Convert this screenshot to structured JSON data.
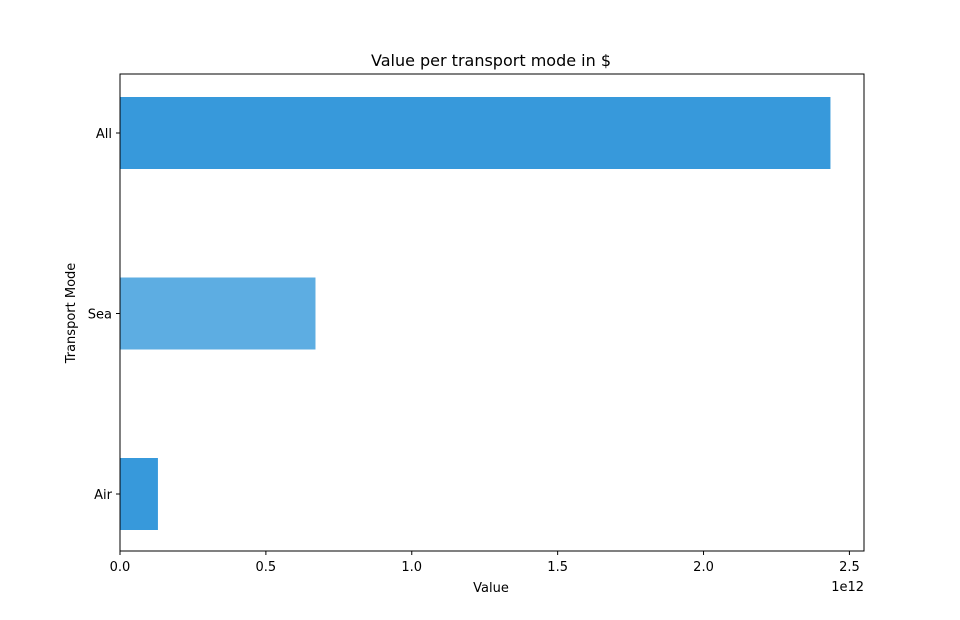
{
  "chart_data": {
    "type": "bar",
    "orientation": "horizontal",
    "title": "Value per transport mode in $",
    "xlabel": "Value",
    "ylabel": "Transport Mode",
    "xlim": [
      0,
      2.55
    ],
    "x_ticks": [
      0.0,
      0.5,
      1.0,
      1.5,
      2.0,
      2.5
    ],
    "x_tick_labels": [
      "0.0",
      "0.5",
      "1.0",
      "1.5",
      "2.0",
      "2.5"
    ],
    "x_scale_label": "1e12",
    "categories": [
      "Air",
      "Sea",
      "All"
    ],
    "values": [
      0.13,
      0.67,
      2.435
    ],
    "value_unit_multiplier": 1000000000000.0,
    "bar_colors": [
      "#3799db",
      "#5dade2",
      "#3799db"
    ],
    "grid": false,
    "legend": "none"
  }
}
